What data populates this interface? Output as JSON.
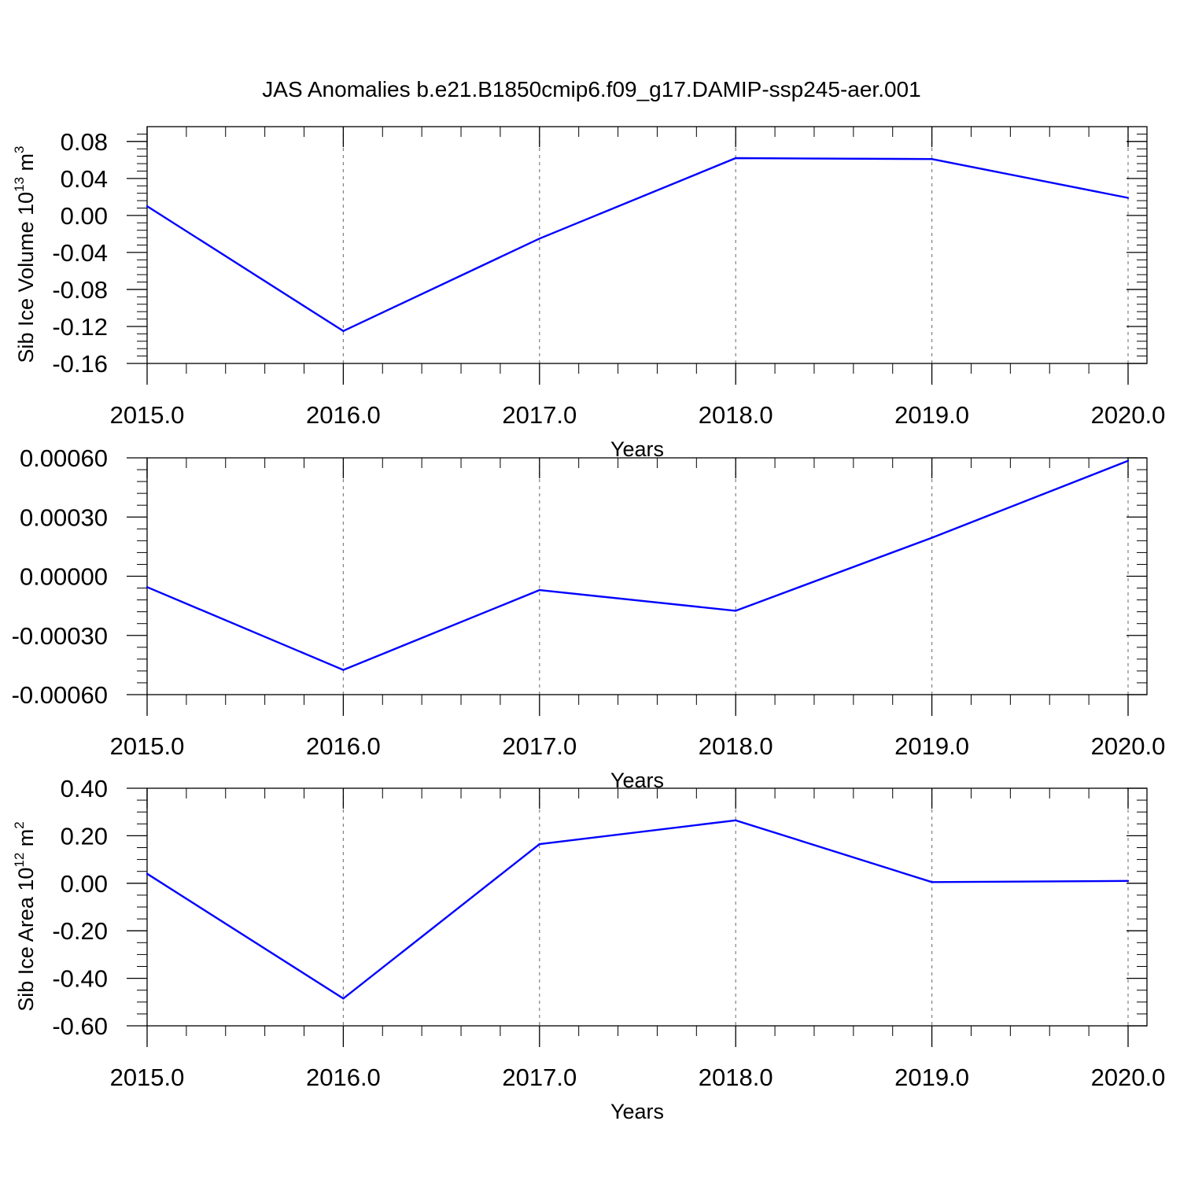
{
  "figure": {
    "title": "JAS Anomalies b.e21.B1850cmip6.f09_g17.DAMIP-ssp245-aer.001"
  },
  "colors": {
    "series": "#0000ff",
    "axis": "#000000",
    "grid": "#808080",
    "background": "#ffffff"
  },
  "chart_data": [
    {
      "type": "line",
      "xlabel": "Years",
      "ylabel": {
        "text": "Sib Ice Volume 10",
        "exponent": "13",
        "unit": " m",
        "unit_exponent": "3"
      },
      "xlim": [
        2015,
        2020
      ],
      "ylim": [
        -0.16,
        0.096
      ],
      "xticks": [
        2015,
        2016,
        2017,
        2018,
        2019,
        2020
      ],
      "xtick_labels": [
        "2015.0",
        "2016.0",
        "2017.0",
        "2018.0",
        "2019.0",
        "2020.0"
      ],
      "yticks": [
        -0.16,
        -0.12,
        -0.08,
        -0.04,
        0.0,
        0.04,
        0.08
      ],
      "ytick_labels": [
        "-0.16",
        "-0.12",
        "-0.08",
        "-0.04",
        "0.00",
        "0.04",
        "0.08"
      ],
      "x_minor_step": 0.2,
      "y_minor_step": 0.008,
      "grid": "vertical dashed at major x ticks",
      "x": [
        2015,
        2016,
        2017,
        2018,
        2019,
        2020
      ],
      "y": [
        0.01,
        -0.125,
        -0.025,
        0.062,
        0.061,
        0.019
      ]
    },
    {
      "type": "line",
      "xlabel": "Years",
      "ylabel": null,
      "xlim": [
        2015,
        2020
      ],
      "ylim": [
        -0.0006,
        0.0006
      ],
      "xticks": [
        2015,
        2016,
        2017,
        2018,
        2019,
        2020
      ],
      "xtick_labels": [
        "2015.0",
        "2016.0",
        "2017.0",
        "2018.0",
        "2019.0",
        "2020.0"
      ],
      "yticks": [
        -0.0006,
        -0.0003,
        0.0,
        0.0003,
        0.0006
      ],
      "ytick_labels": [
        "-0.00060",
        "-0.00030",
        "0.00000",
        "0.00030",
        "0.00060"
      ],
      "x_minor_step": 0.2,
      "y_minor_step": 6e-05,
      "grid": "vertical dashed at major x ticks",
      "x": [
        2015,
        2016,
        2017,
        2018,
        2019,
        2020
      ],
      "y": [
        -5.5e-05,
        -0.000475,
        -7e-05,
        -0.000175,
        0.000195,
        0.000585
      ]
    },
    {
      "type": "line",
      "xlabel": "Years",
      "ylabel": {
        "text": "Sib Ice Area 10",
        "exponent": "12",
        "unit": " m",
        "unit_exponent": "2"
      },
      "xlim": [
        2015,
        2020
      ],
      "ylim": [
        -0.6,
        0.4
      ],
      "xticks": [
        2015,
        2016,
        2017,
        2018,
        2019,
        2020
      ],
      "xtick_labels": [
        "2015.0",
        "2016.0",
        "2017.0",
        "2018.0",
        "2019.0",
        "2020.0"
      ],
      "yticks": [
        -0.6,
        -0.4,
        -0.2,
        0.0,
        0.2,
        0.4
      ],
      "ytick_labels": [
        "-0.60",
        "-0.40",
        "-0.20",
        "0.00",
        "0.20",
        "0.40"
      ],
      "x_minor_step": 0.2,
      "y_minor_step": 0.05,
      "grid": "vertical dashed at major x ticks",
      "x": [
        2015,
        2016,
        2017,
        2018,
        2019,
        2020
      ],
      "y": [
        0.04,
        -0.485,
        0.165,
        0.265,
        0.005,
        0.01
      ]
    }
  ]
}
